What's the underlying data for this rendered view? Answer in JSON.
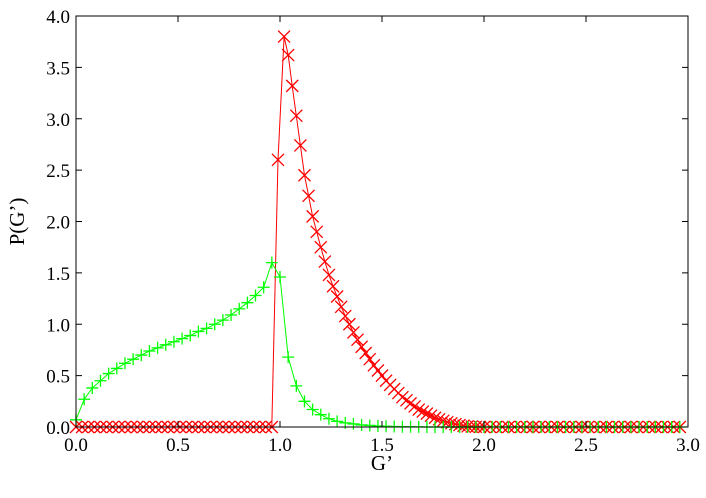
{
  "chart_data": {
    "type": "line",
    "title": "",
    "xlabel": "G’",
    "ylabel": "P(G’)",
    "xlim": [
      0,
      3.0
    ],
    "ylim": [
      0,
      4.0
    ],
    "xticks": [
      "0.0",
      "0.5",
      "1.0",
      "1.5",
      "2.0",
      "2.5",
      "3.0"
    ],
    "yticks": [
      "0.0",
      "0.5",
      "1.0",
      "1.5",
      "2.0",
      "2.5",
      "3.0",
      "3.5",
      "4.0"
    ],
    "grid": false,
    "legend": "none",
    "series": [
      {
        "color": "#ff0000",
        "marker": "x",
        "x": [
          0.0,
          0.03,
          0.06,
          0.09,
          0.12,
          0.15,
          0.18,
          0.21,
          0.24,
          0.27,
          0.3,
          0.33,
          0.36,
          0.39,
          0.42,
          0.45,
          0.48,
          0.51,
          0.54,
          0.57,
          0.6,
          0.63,
          0.66,
          0.69,
          0.72,
          0.75,
          0.78,
          0.81,
          0.84,
          0.87,
          0.9,
          0.93,
          0.96,
          0.99,
          1.02,
          1.04,
          1.06,
          1.08,
          1.1,
          1.12,
          1.14,
          1.16,
          1.18,
          1.2,
          1.22,
          1.24,
          1.26,
          1.28,
          1.3,
          1.32,
          1.34,
          1.36,
          1.38,
          1.4,
          1.42,
          1.44,
          1.46,
          1.48,
          1.5,
          1.52,
          1.54,
          1.56,
          1.58,
          1.6,
          1.62,
          1.64,
          1.66,
          1.68,
          1.7,
          1.72,
          1.74,
          1.76,
          1.78,
          1.8,
          1.82,
          1.84,
          1.86,
          1.88,
          1.9,
          1.92,
          1.94,
          1.96,
          1.98,
          2.0,
          2.03,
          2.06,
          2.09,
          2.12,
          2.15,
          2.18,
          2.21,
          2.24,
          2.27,
          2.3,
          2.33,
          2.36,
          2.39,
          2.42,
          2.45,
          2.48,
          2.51,
          2.54,
          2.57,
          2.6,
          2.63,
          2.66,
          2.69,
          2.72,
          2.75,
          2.78,
          2.81,
          2.84,
          2.87,
          2.9,
          2.93,
          2.96
        ],
        "y": [
          0,
          0,
          0,
          0,
          0,
          0,
          0,
          0,
          0,
          0,
          0,
          0,
          0,
          0,
          0,
          0,
          0,
          0,
          0,
          0,
          0,
          0,
          0,
          0,
          0,
          0,
          0,
          0,
          0,
          0,
          0,
          0,
          0,
          2.6,
          3.8,
          3.62,
          3.32,
          3.03,
          2.74,
          2.45,
          2.25,
          2.05,
          1.9,
          1.75,
          1.61,
          1.48,
          1.37,
          1.27,
          1.17,
          1.08,
          1.0,
          0.92,
          0.85,
          0.78,
          0.72,
          0.66,
          0.6,
          0.55,
          0.5,
          0.45,
          0.41,
          0.37,
          0.33,
          0.29,
          0.26,
          0.23,
          0.2,
          0.17,
          0.15,
          0.13,
          0.11,
          0.09,
          0.075,
          0.06,
          0.047,
          0.036,
          0.027,
          0.019,
          0.012,
          0.007,
          0.004,
          0.002,
          0.001,
          0,
          0,
          0,
          0,
          0,
          0,
          0,
          0,
          0,
          0,
          0,
          0,
          0,
          0,
          0,
          0,
          0,
          0,
          0,
          0,
          0,
          0,
          0,
          0,
          0,
          0,
          0,
          0,
          0,
          0,
          0,
          0,
          0
        ]
      },
      {
        "color": "#00ff00",
        "marker": "+",
        "x": [
          0.0,
          0.04,
          0.08,
          0.12,
          0.16,
          0.2,
          0.24,
          0.28,
          0.32,
          0.36,
          0.4,
          0.44,
          0.48,
          0.52,
          0.56,
          0.6,
          0.64,
          0.68,
          0.72,
          0.76,
          0.8,
          0.84,
          0.88,
          0.92,
          0.96,
          1.0,
          1.04,
          1.08,
          1.12,
          1.16,
          1.2,
          1.24,
          1.28,
          1.32,
          1.36,
          1.4,
          1.44,
          1.48,
          1.52,
          1.56,
          1.6,
          1.64,
          1.68,
          1.72,
          1.76,
          1.8,
          1.84,
          1.88,
          1.92,
          1.96,
          2.0,
          2.04,
          2.08,
          2.12,
          2.16,
          2.2,
          2.24,
          2.28,
          2.32,
          2.36,
          2.4,
          2.44,
          2.48,
          2.52,
          2.56,
          2.6,
          2.64,
          2.68,
          2.72,
          2.76,
          2.8,
          2.84,
          2.88,
          2.92,
          2.96
        ],
        "y": [
          0.07,
          0.27,
          0.38,
          0.45,
          0.52,
          0.57,
          0.62,
          0.66,
          0.7,
          0.74,
          0.77,
          0.8,
          0.83,
          0.86,
          0.89,
          0.93,
          0.96,
          1.0,
          1.04,
          1.09,
          1.15,
          1.21,
          1.28,
          1.36,
          1.6,
          1.46,
          0.68,
          0.4,
          0.25,
          0.17,
          0.12,
          0.08,
          0.055,
          0.04,
          0.03,
          0.02,
          0.015,
          0.01,
          0.007,
          0.005,
          0.003,
          0.002,
          0.001,
          0,
          0,
          0,
          0,
          0,
          0,
          0,
          0,
          0,
          0,
          0,
          0,
          0,
          0,
          0,
          0,
          0,
          0,
          0,
          0,
          0,
          0,
          0,
          0,
          0,
          0,
          0,
          0,
          0,
          0,
          0,
          0
        ]
      }
    ]
  }
}
